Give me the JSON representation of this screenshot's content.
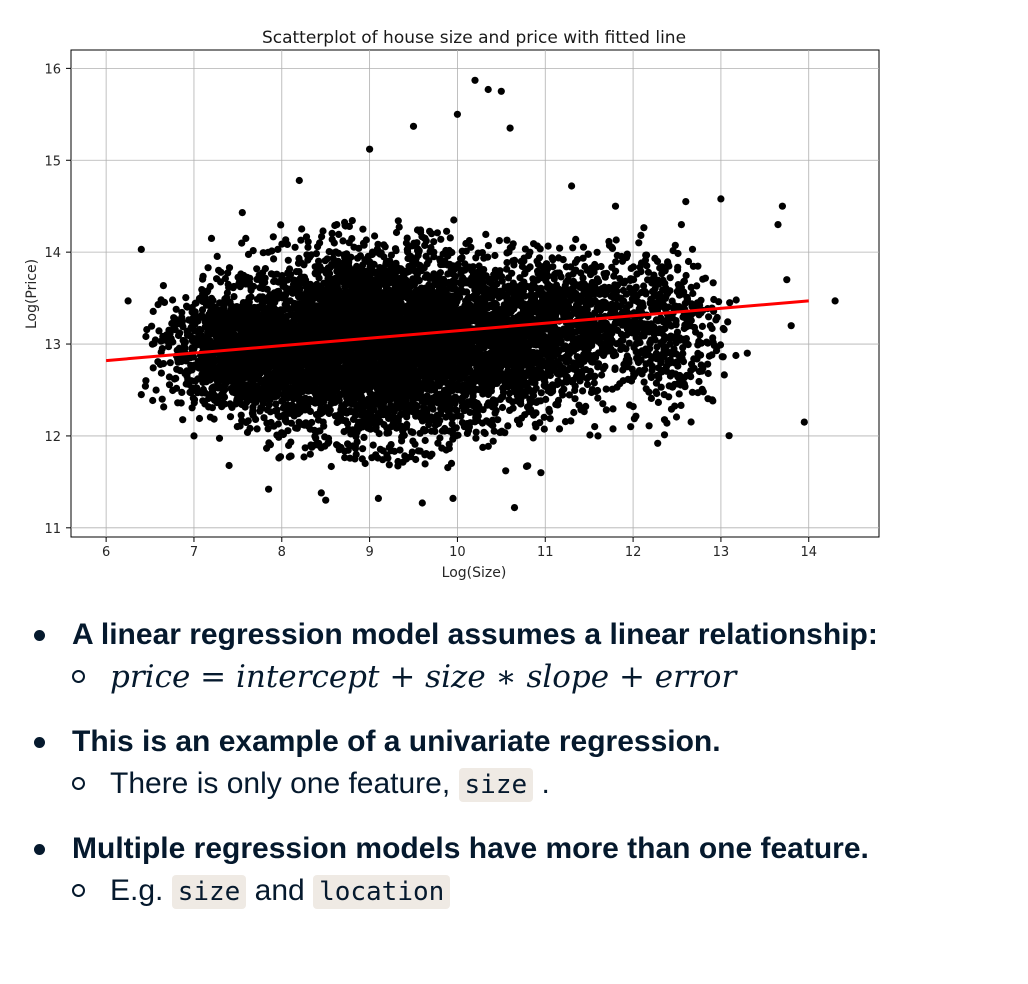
{
  "chart_data": {
    "type": "scatter",
    "title": "Scatterplot of house size and price with fitted line",
    "xlabel": "Log(Size)",
    "ylabel": "Log(Price)",
    "xlim": [
      5.6,
      14.8
    ],
    "ylim": [
      10.9,
      16.2
    ],
    "xticks": [
      6,
      7,
      8,
      9,
      10,
      11,
      12,
      13,
      14
    ],
    "yticks": [
      11,
      12,
      13,
      14,
      15,
      16
    ],
    "grid": true,
    "point_color": "#000000",
    "line_color": "#ff0000",
    "fitted_line": {
      "x": [
        6,
        14
      ],
      "y": [
        12.82,
        13.47
      ]
    },
    "points_sample": [
      [
        6.25,
        13.47
      ],
      [
        6.4,
        14.03
      ],
      [
        6.4,
        12.45
      ],
      [
        7.0,
        12.0
      ],
      [
        7.2,
        14.15
      ],
      [
        7.55,
        14.43
      ],
      [
        7.85,
        11.42
      ],
      [
        8.2,
        14.78
      ],
      [
        8.45,
        11.38
      ],
      [
        8.5,
        11.3
      ],
      [
        8.95,
        11.7
      ],
      [
        9.0,
        15.12
      ],
      [
        9.1,
        11.32
      ],
      [
        9.5,
        15.37
      ],
      [
        9.6,
        11.27
      ],
      [
        9.95,
        11.32
      ],
      [
        10.0,
        15.5
      ],
      [
        10.2,
        15.87
      ],
      [
        10.35,
        15.77
      ],
      [
        10.5,
        15.75
      ],
      [
        10.6,
        15.35
      ],
      [
        10.55,
        11.62
      ],
      [
        10.65,
        11.22
      ],
      [
        10.95,
        11.6
      ],
      [
        11.3,
        14.72
      ],
      [
        11.6,
        12.0
      ],
      [
        11.8,
        14.5
      ],
      [
        12.28,
        11.92
      ],
      [
        12.6,
        14.55
      ],
      [
        12.55,
        14.3
      ],
      [
        13.0,
        14.58
      ],
      [
        13.65,
        14.3
      ],
      [
        13.7,
        14.5
      ],
      [
        13.75,
        13.7
      ],
      [
        13.8,
        13.2
      ],
      [
        13.95,
        12.15
      ],
      [
        14.3,
        13.47
      ],
      [
        13.3,
        12.9
      ],
      [
        12.8,
        12.48
      ],
      [
        13.1,
        13.45
      ]
    ],
    "clusters": [
      {
        "cx": 9.1,
        "cy": 13.0,
        "sx": 0.75,
        "sy": 0.52,
        "n": 4200
      },
      {
        "cx": 7.6,
        "cy": 12.95,
        "sx": 0.45,
        "sy": 0.32,
        "n": 1500
      },
      {
        "cx": 10.7,
        "cy": 13.05,
        "sx": 0.55,
        "sy": 0.42,
        "n": 1400
      },
      {
        "cx": 12.3,
        "cy": 13.15,
        "sx": 0.35,
        "sy": 0.45,
        "n": 450
      },
      {
        "cx": 11.5,
        "cy": 13.4,
        "sx": 0.35,
        "sy": 0.3,
        "n": 300
      }
    ]
  },
  "bullets": [
    {
      "text": "A linear regression model assumes a linear relationship:",
      "sub": {
        "kind": "math",
        "text": "price = intercept + size ∗ slope + error"
      }
    },
    {
      "text": "This is an example of a univariate regression.",
      "sub": {
        "kind": "code",
        "prefix": "There is only one feature, ",
        "code1": "size",
        "mid": "",
        "code2": "",
        "suffix": " ."
      }
    },
    {
      "text": "Multiple regression models have more than one feature.",
      "sub": {
        "kind": "code",
        "prefix": "E.g. ",
        "code1": "size",
        "mid": " and ",
        "code2": "location",
        "suffix": ""
      }
    }
  ]
}
